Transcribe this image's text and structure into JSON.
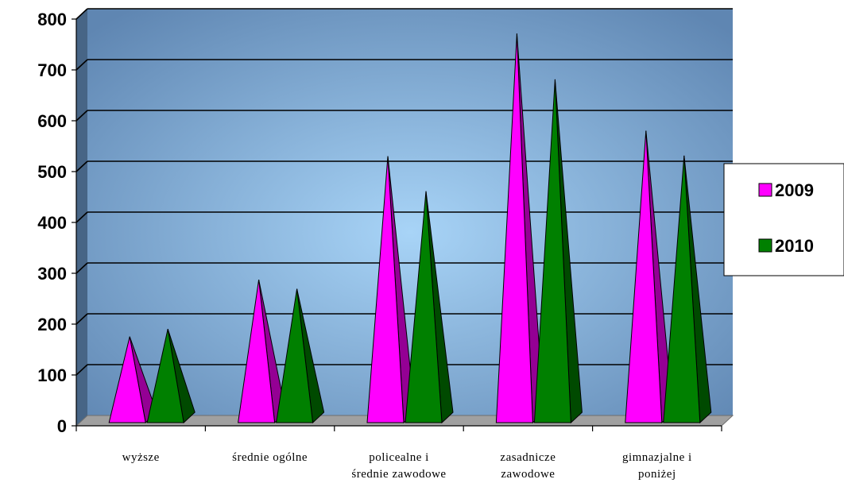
{
  "chart_data": {
    "type": "bar",
    "style": "3d-pyramid",
    "title": "",
    "xlabel": "",
    "ylabel": "",
    "ylim": [
      0,
      800
    ],
    "yticks": [
      0,
      100,
      200,
      300,
      400,
      500,
      600,
      700,
      800
    ],
    "grid": true,
    "legend_position": "right",
    "categories": [
      [
        "wyższe"
      ],
      [
        "średnie ogólne"
      ],
      [
        "policealne i",
        "średnie zawodowe"
      ],
      [
        "zasadnicze",
        "zawodowe"
      ],
      [
        "gimnazjalne i",
        "poniżej"
      ]
    ],
    "series": [
      {
        "name": "2009",
        "color": "#FF00FF",
        "values": [
          166,
          278,
          521,
          762,
          571
        ]
      },
      {
        "name": "2010",
        "color": "#008000",
        "values": [
          181,
          260,
          452,
          672,
          522
        ]
      }
    ],
    "colors": {
      "wall_light": "#A8D4F7",
      "wall_dark": "#5F86B2",
      "floor": "#A0A0A0"
    }
  }
}
